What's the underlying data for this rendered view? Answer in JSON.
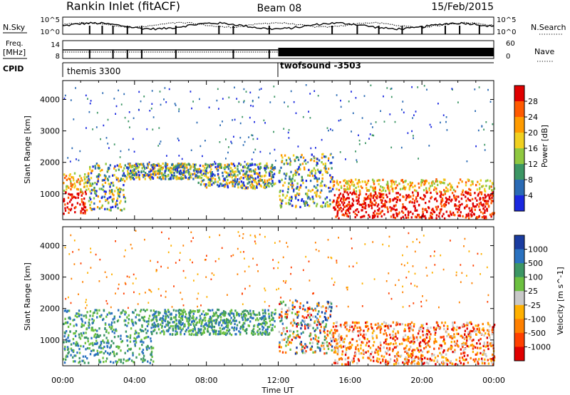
{
  "header": {
    "station": "Rankin Inlet (fitACF)",
    "beam": "Beam 08",
    "date": "15/Feb/2015"
  },
  "strips": {
    "nsky_label": "N.Sky",
    "nsearch_label": "N.Search",
    "freq_label_line1": "Freq.",
    "freq_label_line2": "[MHz]",
    "nave_label": "Nave",
    "cpid_label": "CPID",
    "left_ticks_top": [
      "10^5",
      "10^0"
    ],
    "right_ticks_top": [
      "10^5",
      "10^0"
    ],
    "left_ticks_freq": [
      "14",
      "8"
    ],
    "right_ticks_nave": [
      "60",
      "0"
    ],
    "cpid_segments": [
      {
        "name": "themis 3300",
        "start_hour": 0,
        "end_hour": 12
      },
      {
        "name": "twofsound -3503",
        "start_hour": 12,
        "end_hour": 24
      }
    ]
  },
  "chart_data": [
    {
      "type": "heatmap",
      "parameter": "Power",
      "ylabel": "Slant Range [km]",
      "yticks": [
        1000,
        2000,
        3000,
        4000
      ],
      "ylim": [
        180,
        4600
      ],
      "colorbar_label": "Power [dB]",
      "colorbar_ticks": [
        "28",
        "24",
        "20",
        "16",
        "12",
        "8",
        "4"
      ],
      "colorbar_colors": [
        "#e00000",
        "#ff5a00",
        "#ff9b00",
        "#f0d020",
        "#8fc840",
        "#3c9664",
        "#2a6ab4",
        "#1a28e0"
      ],
      "echo_regions": [
        {
          "t0": 0.0,
          "t1": 1.3,
          "r0": 400,
          "r1": 1700,
          "level": "high"
        },
        {
          "t0": 1.3,
          "t1": 3.5,
          "r0": 500,
          "r1": 2000,
          "level": "mid"
        },
        {
          "t0": 3.5,
          "t1": 7.5,
          "r0": 1500,
          "r1": 2000,
          "level": "mid"
        },
        {
          "t0": 7.5,
          "t1": 11.8,
          "r0": 1200,
          "r1": 2000,
          "level": "mid"
        },
        {
          "t0": 12.0,
          "t1": 15.0,
          "r0": 600,
          "r1": 2300,
          "level": "mid"
        },
        {
          "t0": 15.0,
          "t1": 24.0,
          "r0": 250,
          "r1": 1500,
          "level": "high"
        }
      ]
    },
    {
      "type": "heatmap",
      "parameter": "Velocity",
      "ylabel": "Slant Range [km]",
      "xlabel": "Time UT",
      "xticks": [
        "00:00",
        "04:00",
        "08:00",
        "12:00",
        "16:00",
        "20:00",
        "00:00"
      ],
      "yticks": [
        1000,
        2000,
        3000,
        4000
      ],
      "ylim": [
        180,
        4600
      ],
      "colorbar_label": "Velocity [m s^-1]",
      "colorbar_ticks": [
        "1000",
        "500",
        "100",
        "25",
        "-25",
        "-100",
        "-500",
        "-1000"
      ],
      "colorbar_colors": [
        "#1a3ca0",
        "#2a72c0",
        "#3c9664",
        "#6cc040",
        "#c8c8c8",
        "#ffb000",
        "#ff8000",
        "#ff4000",
        "#e00000"
      ],
      "echo_regions": [
        {
          "t0": 0.0,
          "t1": 5.0,
          "r0": 300,
          "r1": 2000,
          "level": "positive"
        },
        {
          "t0": 5.0,
          "t1": 11.8,
          "r0": 1200,
          "r1": 2000,
          "level": "positive"
        },
        {
          "t0": 12.0,
          "t1": 15.0,
          "r0": 600,
          "r1": 2300,
          "level": "mixed"
        },
        {
          "t0": 15.0,
          "t1": 24.0,
          "r0": 250,
          "r1": 1600,
          "level": "negative"
        }
      ]
    }
  ]
}
